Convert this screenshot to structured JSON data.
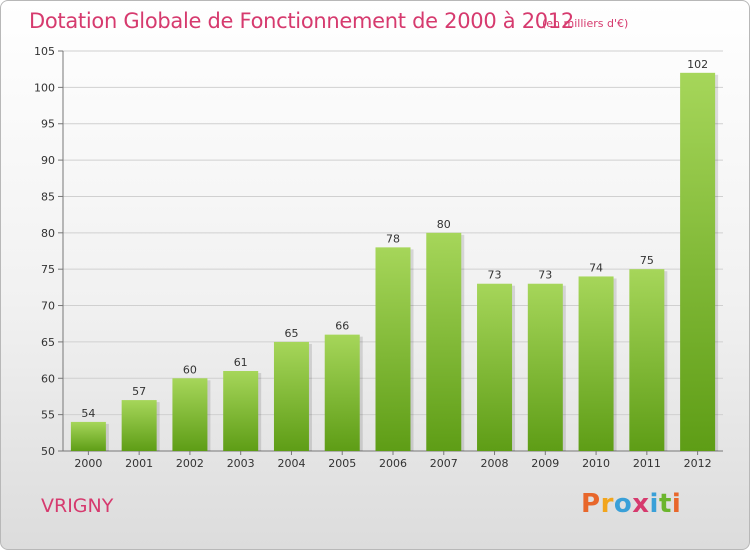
{
  "header": {
    "title": "Dotation Globale de Fonctionnement de 2000 à 2012",
    "unit": "(en milliers d'€)"
  },
  "footer": {
    "commune": "VRIGNY",
    "logo_letters": [
      "P",
      "r",
      "o",
      "x",
      "i",
      "t",
      "i"
    ]
  },
  "colors": {
    "title": "#d63a6e",
    "bar_light": "#a6d65a",
    "bar_dark": "#5e9d16",
    "grid": "#d0d0d0",
    "logo": [
      "#e8672b",
      "#f2a51c",
      "#3aa0d8",
      "#d63a6e",
      "#3aa0d8",
      "#6cb52d",
      "#e8672b"
    ]
  },
  "chart_data": {
    "type": "bar",
    "categories": [
      "2000",
      "2001",
      "2002",
      "2003",
      "2004",
      "2005",
      "2006",
      "2007",
      "2008",
      "2009",
      "2010",
      "2011",
      "2012"
    ],
    "values": [
      54,
      57,
      60,
      61,
      65,
      66,
      78,
      80,
      73,
      73,
      74,
      75,
      102
    ],
    "ylim": [
      50,
      105
    ],
    "yticks": [
      50,
      55,
      60,
      65,
      70,
      75,
      80,
      85,
      90,
      95,
      100,
      105
    ],
    "grid": true
  }
}
